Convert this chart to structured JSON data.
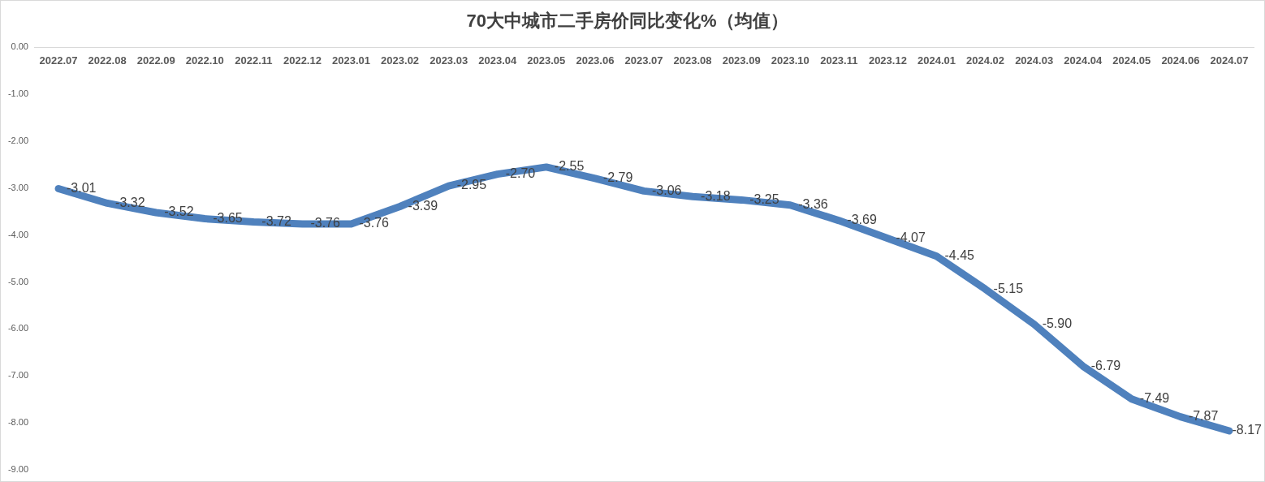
{
  "chart_data": {
    "type": "line",
    "title": "70大中城市二手房价同比变化%（均值）",
    "categories": [
      "2022.07",
      "2022.08",
      "2022.09",
      "2022.10",
      "2022.11",
      "2022.12",
      "2023.01",
      "2023.02",
      "2023.03",
      "2023.04",
      "2023.05",
      "2023.06",
      "2023.07",
      "2023.08",
      "2023.09",
      "2023.10",
      "2023.11",
      "2023.12",
      "2024.01",
      "2024.02",
      "2024.03",
      "2024.04",
      "2024.05",
      "2024.06",
      "2024.07"
    ],
    "values": [
      -3.01,
      -3.32,
      -3.52,
      -3.65,
      -3.72,
      -3.76,
      -3.76,
      -3.39,
      -2.95,
      -2.7,
      -2.55,
      -2.79,
      -3.06,
      -3.18,
      -3.25,
      -3.36,
      -3.69,
      -4.07,
      -4.45,
      -5.15,
      -5.9,
      -6.79,
      -7.49,
      -7.87,
      -8.17
    ],
    "value_labels": [
      "-3.01",
      "-3.32",
      "-3.52",
      "-3.65",
      "-3.72",
      "-3.76",
      "-3.76",
      "-3.39",
      "-2.95",
      "-2.70",
      "-2.55",
      "-2.79",
      "-3.06",
      "-3.18",
      "-3.25",
      "-3.36",
      "-3.69",
      "-4.07",
      "-4.45",
      "-5.15",
      "-5.90",
      "-6.79",
      "-7.49",
      "-7.87",
      "-8.17"
    ],
    "color": "#4f81bd",
    "ylim": [
      -9,
      0
    ],
    "yticks": [
      {
        "value": 0,
        "label": "0.00"
      },
      {
        "value": -1,
        "label": "-1.00"
      },
      {
        "value": -2,
        "label": "-2.00"
      },
      {
        "value": -3,
        "label": "-3.00"
      },
      {
        "value": -4,
        "label": "-4.00"
      },
      {
        "value": -5,
        "label": "-5.00"
      },
      {
        "value": -6,
        "label": "-6.00"
      },
      {
        "value": -7,
        "label": "-7.00"
      },
      {
        "value": -8,
        "label": "-8.00"
      },
      {
        "value": -9,
        "label": "-9.00"
      }
    ]
  }
}
